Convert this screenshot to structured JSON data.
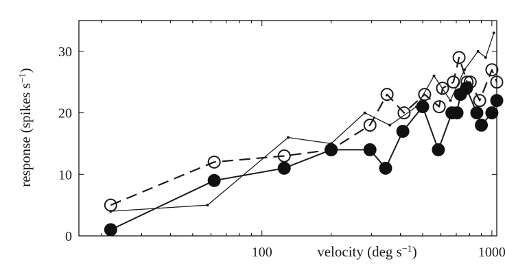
{
  "chart_data": {
    "type": "line",
    "xscale": "log",
    "xlim": [
      16,
      1050
    ],
    "ylim": [
      0,
      35
    ],
    "xticks": [
      100,
      1000
    ],
    "xtick_labels": [
      "100",
      "1000"
    ],
    "yticks": [
      0,
      10,
      20,
      30
    ],
    "ytick_labels": [
      "0",
      "10",
      "20",
      "30"
    ],
    "xlabel": "velocity (deg s",
    "xlabel_sup": "−1",
    "xlabel_end": ")",
    "ylabel": "response (spikes s",
    "ylabel_sup": "−1",
    "ylabel_end": ")",
    "grid": false,
    "series": [
      {
        "style": "solid-thin-small-dots",
        "x": [
          22,
          58,
          130,
          200,
          280,
          360,
          470,
          560,
          660,
          760,
          870,
          940,
          1020
        ],
        "y": [
          4,
          5,
          16,
          15,
          20,
          18,
          21,
          26,
          22,
          27,
          30,
          29,
          33
        ]
      },
      {
        "style": "dashed-open-circles",
        "x": [
          22,
          62,
          125,
          200,
          295,
          350,
          415,
          510,
          590,
          610,
          680,
          720,
          780,
          805,
          885,
          1000,
          1050
        ],
        "y": [
          5,
          12,
          13,
          14,
          18,
          23,
          20,
          23,
          21,
          24,
          25,
          29,
          25,
          25,
          22,
          27,
          25
        ]
      },
      {
        "style": "solid-filled-circles",
        "x": [
          22,
          62,
          125,
          200,
          295,
          345,
          410,
          500,
          585,
          670,
          705,
          730,
          775,
          860,
          900,
          1000,
          1050
        ],
        "y": [
          1,
          9,
          11,
          14,
          14,
          11,
          17,
          21,
          14,
          20,
          20,
          23,
          24,
          20,
          18,
          20,
          22
        ]
      }
    ]
  }
}
